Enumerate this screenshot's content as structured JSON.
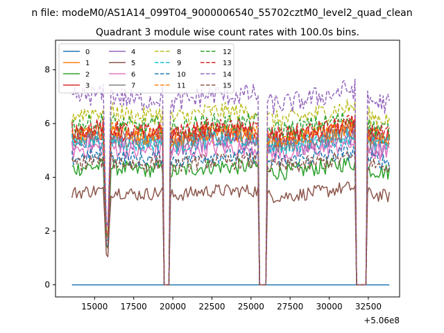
{
  "chart_data": {
    "type": "line",
    "suptitle": "n file: modeM0/AS1A14_099T04_9000006540_55702cztM0_level2_quad_clean",
    "title": "Quadrant 3 module wise count rates with 100.0s bins.",
    "xlabel": "",
    "ylabel": "",
    "offset_label": "+5.06e8",
    "xlim": [
      12500,
      34500
    ],
    "ylim": [
      -0.45,
      9.1
    ],
    "x_ticks": [
      15000,
      17500,
      20000,
      22500,
      25000,
      27500,
      30000,
      32500
    ],
    "x_tick_labels": [
      "15000",
      "17500",
      "20000",
      "22500",
      "25000",
      "27500",
      "30000",
      "32500"
    ],
    "y_ticks": [
      0,
      2,
      4,
      6,
      8
    ],
    "y_tick_labels": [
      "0",
      "2",
      "4",
      "6",
      "8"
    ],
    "x_start": 13550,
    "x_end": 33850,
    "bin_size": 100,
    "gaps": [
      [
        19450,
        19750
      ],
      [
        25550,
        25950
      ],
      [
        31750,
        32350
      ]
    ],
    "dip": {
      "center": 15800,
      "half_width": 250,
      "depth": 0.85
    },
    "legend_position": "upper-left",
    "legend_columns": 4,
    "series": [
      {
        "name": "0",
        "color": "#1f77b4",
        "dash": "solid",
        "base": 0.0,
        "noise": 0.0,
        "amp": 0.0
      },
      {
        "name": "1",
        "color": "#ff7f0e",
        "dash": "solid",
        "base": 5.5,
        "noise": 0.35,
        "amp": 0.4
      },
      {
        "name": "2",
        "color": "#2ca02c",
        "dash": "solid",
        "base": 4.3,
        "noise": 0.3,
        "amp": 0.35
      },
      {
        "name": "3",
        "color": "#d62728",
        "dash": "solid",
        "base": 5.6,
        "noise": 0.35,
        "amp": 0.4
      },
      {
        "name": "4",
        "color": "#9467bd",
        "dash": "solid",
        "base": 5.2,
        "noise": 0.35,
        "amp": 0.4
      },
      {
        "name": "5",
        "color": "#8c564b",
        "dash": "solid",
        "base": 3.4,
        "noise": 0.25,
        "amp": 0.35
      },
      {
        "name": "6",
        "color": "#e377c2",
        "dash": "solid",
        "base": 5.0,
        "noise": 0.35,
        "amp": 0.4
      },
      {
        "name": "7",
        "color": "#7f7f7f",
        "dash": "solid",
        "base": 5.4,
        "noise": 0.35,
        "amp": 0.4
      },
      {
        "name": "8",
        "color": "#bcbd22",
        "dash": "dashed",
        "base": 6.3,
        "noise": 0.35,
        "amp": 0.5
      },
      {
        "name": "9",
        "color": "#17becf",
        "dash": "dashed",
        "base": 5.3,
        "noise": 0.35,
        "amp": 0.4
      },
      {
        "name": "10",
        "color": "#1f77b4",
        "dash": "dashed",
        "base": 4.7,
        "noise": 0.3,
        "amp": 0.35
      },
      {
        "name": "11",
        "color": "#ff7f0e",
        "dash": "dashed",
        "base": 5.6,
        "noise": 0.35,
        "amp": 0.4
      },
      {
        "name": "12",
        "color": "#2ca02c",
        "dash": "dashed",
        "base": 5.9,
        "noise": 0.35,
        "amp": 0.45
      },
      {
        "name": "13",
        "color": "#d62728",
        "dash": "dashed",
        "base": 5.7,
        "noise": 0.35,
        "amp": 0.45
      },
      {
        "name": "14",
        "color": "#9467bd",
        "dash": "dashed",
        "base": 6.9,
        "noise": 0.4,
        "amp": 0.6
      },
      {
        "name": "15",
        "color": "#8c564b",
        "dash": "dashed",
        "base": 4.5,
        "noise": 0.3,
        "amp": 0.35
      }
    ]
  }
}
